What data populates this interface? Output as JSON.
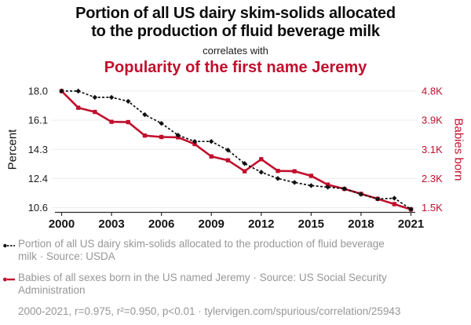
{
  "header": {
    "title_line1": "Portion of all US dairy skim-solids allocated",
    "title_line2": "to the production of fluid beverage milk",
    "connector": "correlates with",
    "subtitle": "Popularity of the first name Jeremy"
  },
  "colors": {
    "accent_red": "#c10f2d",
    "series_black": "#111111",
    "grid": "#ececec",
    "axis": "#2b2b2b",
    "tick_text": "#1f1f1f",
    "legend_gray": "#979797"
  },
  "chart_data": {
    "type": "line",
    "x": [
      2000,
      2001,
      2002,
      2003,
      2004,
      2005,
      2006,
      2007,
      2008,
      2009,
      2010,
      2011,
      2012,
      2013,
      2014,
      2015,
      2016,
      2017,
      2018,
      2019,
      2020,
      2021
    ],
    "x_tick_years": [
      2000,
      2003,
      2006,
      2009,
      2012,
      2015,
      2018,
      2021
    ],
    "left_axis": {
      "label": "Percent",
      "min": 10.6,
      "max": 18.0,
      "tick_labels": [
        "18.0",
        "16.1",
        "14.3",
        "12.4",
        "10.6"
      ]
    },
    "right_axis": {
      "label": "Babies born",
      "min": 1500,
      "max": 4800,
      "tick_labels": [
        "4.8K",
        "3.9K",
        "3.1K",
        "2.3K",
        "1.5K"
      ]
    },
    "series": [
      {
        "name": "Portion of all US dairy skim-solids allocated to the production of fluid beverage milk",
        "source": "USDA",
        "axis": "left",
        "color": "#111111",
        "line_style": "dashed",
        "marker": "diamond",
        "values": [
          18.0,
          18.0,
          17.6,
          17.6,
          17.35,
          16.5,
          15.95,
          15.2,
          14.8,
          14.8,
          14.25,
          13.4,
          12.85,
          12.45,
          12.2,
          12.0,
          11.9,
          11.8,
          11.45,
          11.15,
          11.2,
          10.5
        ]
      },
      {
        "name": "Babies of all sexes born in the US named Jeremy",
        "source": "US Social Security Administration",
        "axis": "right",
        "color": "#c10f2d",
        "line_style": "solid",
        "marker": "square",
        "values": [
          4800,
          4330,
          4210,
          3930,
          3920,
          3540,
          3500,
          3490,
          3300,
          2950,
          2840,
          2530,
          2870,
          2540,
          2530,
          2400,
          2150,
          2030,
          1890,
          1750,
          1600,
          1450
        ]
      }
    ],
    "grid": true,
    "legend_position": "bottom"
  },
  "legend": {
    "items": [
      {
        "marker": "black-dotted-line-icon",
        "lines": [
          "Portion of all US dairy skim-solids allocated to the production of fluid beverage",
          "milk · Source: USDA"
        ]
      },
      {
        "marker": "red-solid-line-icon",
        "lines": [
          "Babies of all sexes born in the US named Jeremy · Source: US Social Security",
          "Administration"
        ]
      }
    ],
    "footer": "2000-2021, r=0.975, r²=0.950, p<0.01 · tylervigen.com/spurious/correlation/25943"
  }
}
